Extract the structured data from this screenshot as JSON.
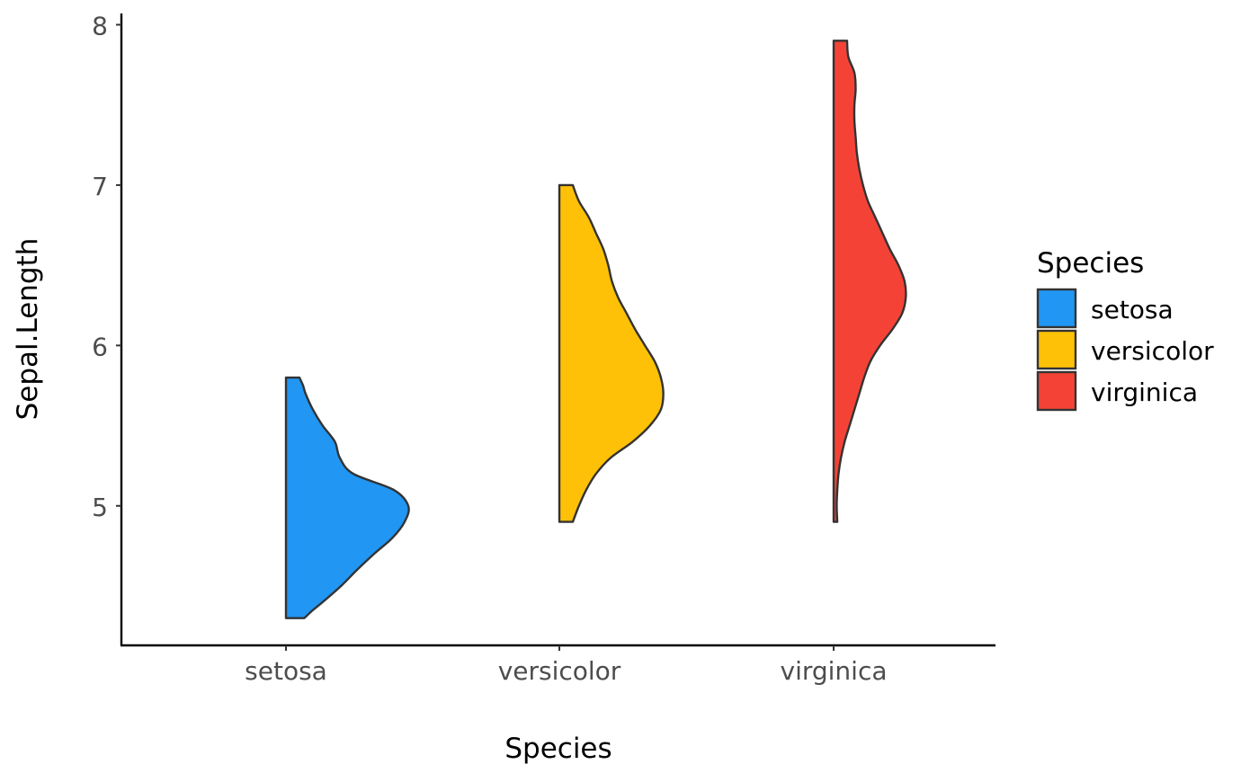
{
  "chart_data": {
    "type": "violin",
    "variant": "half-violin (right side)",
    "title": "",
    "xlabel": "Species",
    "ylabel": "Sepal.Length",
    "categories": [
      "setosa",
      "versicolor",
      "virginica"
    ],
    "ylim": [
      4.13,
      8.07
    ],
    "yticks": [
      5,
      6,
      7,
      8
    ],
    "ytick_labels": [
      "5",
      "6",
      "7",
      "8"
    ],
    "grid": false,
    "legend": {
      "title": "Species",
      "position": "right",
      "entries": [
        "setosa",
        "versicolor",
        "virginica"
      ]
    },
    "series": [
      {
        "category": "setosa",
        "color": "#2196F3",
        "range": [
          4.3,
          5.8
        ],
        "density": [
          [
            4.3,
            0.15
          ],
          [
            4.35,
            0.22
          ],
          [
            4.4,
            0.3
          ],
          [
            4.5,
            0.45
          ],
          [
            4.6,
            0.58
          ],
          [
            4.7,
            0.72
          ],
          [
            4.8,
            0.87
          ],
          [
            4.9,
            0.97
          ],
          [
            5.0,
            1.0
          ],
          [
            5.1,
            0.88
          ],
          [
            5.2,
            0.55
          ],
          [
            5.3,
            0.44
          ],
          [
            5.4,
            0.4
          ],
          [
            5.5,
            0.3
          ],
          [
            5.6,
            0.22
          ],
          [
            5.7,
            0.16
          ],
          [
            5.75,
            0.14
          ],
          [
            5.8,
            0.11
          ]
        ]
      },
      {
        "category": "versicolor",
        "color": "#FFC107",
        "range": [
          4.9,
          7.0
        ],
        "density": [
          [
            4.9,
            0.11
          ],
          [
            5.0,
            0.16
          ],
          [
            5.1,
            0.22
          ],
          [
            5.2,
            0.3
          ],
          [
            5.3,
            0.42
          ],
          [
            5.4,
            0.6
          ],
          [
            5.5,
            0.74
          ],
          [
            5.6,
            0.83
          ],
          [
            5.7,
            0.85
          ],
          [
            5.8,
            0.83
          ],
          [
            5.9,
            0.78
          ],
          [
            6.0,
            0.7
          ],
          [
            6.1,
            0.62
          ],
          [
            6.2,
            0.55
          ],
          [
            6.3,
            0.48
          ],
          [
            6.4,
            0.43
          ],
          [
            6.5,
            0.4
          ],
          [
            6.6,
            0.36
          ],
          [
            6.7,
            0.3
          ],
          [
            6.8,
            0.24
          ],
          [
            6.9,
            0.16
          ],
          [
            7.0,
            0.11
          ]
        ]
      },
      {
        "category": "virginica",
        "color": "#F44336",
        "range": [
          4.9,
          7.9
        ],
        "density": [
          [
            4.9,
            0.03
          ],
          [
            5.0,
            0.025
          ],
          [
            5.1,
            0.03
          ],
          [
            5.2,
            0.04
          ],
          [
            5.3,
            0.06
          ],
          [
            5.4,
            0.09
          ],
          [
            5.5,
            0.13
          ],
          [
            5.6,
            0.17
          ],
          [
            5.7,
            0.21
          ],
          [
            5.8,
            0.25
          ],
          [
            5.9,
            0.3
          ],
          [
            6.0,
            0.38
          ],
          [
            6.1,
            0.48
          ],
          [
            6.2,
            0.56
          ],
          [
            6.3,
            0.59
          ],
          [
            6.4,
            0.58
          ],
          [
            6.5,
            0.53
          ],
          [
            6.6,
            0.46
          ],
          [
            6.7,
            0.4
          ],
          [
            6.8,
            0.34
          ],
          [
            6.9,
            0.28
          ],
          [
            7.0,
            0.24
          ],
          [
            7.1,
            0.21
          ],
          [
            7.2,
            0.19
          ],
          [
            7.3,
            0.18
          ],
          [
            7.4,
            0.17
          ],
          [
            7.5,
            0.17
          ],
          [
            7.6,
            0.18
          ],
          [
            7.7,
            0.17
          ],
          [
            7.8,
            0.12
          ],
          [
            7.9,
            0.11
          ]
        ]
      }
    ]
  }
}
